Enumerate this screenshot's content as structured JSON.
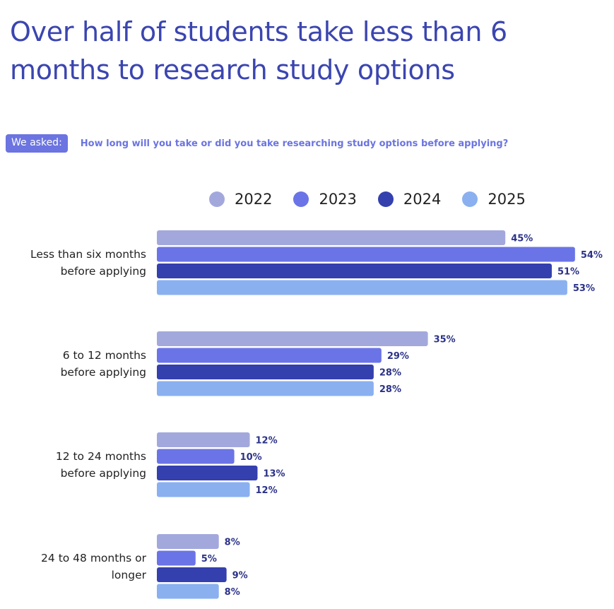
{
  "title": "Over half of students take less than 6 months to research study options",
  "asked": {
    "badge": "We asked:",
    "question": "How long will you take or did you take researching study options before applying?"
  },
  "chart_data": {
    "type": "bar",
    "orientation": "horizontal",
    "title": "Over half of students take less than 6 months to research study options",
    "categories": [
      [
        "Less than six months",
        "before applying"
      ],
      [
        "6 to 12 months",
        "before applying"
      ],
      [
        "12 to 24 months",
        "before applying"
      ],
      [
        "24 to 48 months or",
        "longer"
      ]
    ],
    "series": [
      {
        "name": "2022",
        "color": "#a3a8dc",
        "values": [
          45,
          35,
          12,
          8
        ]
      },
      {
        "name": "2023",
        "color": "#6b74e6",
        "values": [
          54,
          29,
          10,
          5
        ]
      },
      {
        "name": "2024",
        "color": "#3440ad",
        "values": [
          51,
          28,
          13,
          9
        ]
      },
      {
        "name": "2025",
        "color": "#8ab0f0",
        "values": [
          53,
          28,
          12,
          8
        ]
      }
    ],
    "value_suffix": "%",
    "xlim": [
      0,
      60
    ],
    "grid": false,
    "legend_position": "top"
  }
}
